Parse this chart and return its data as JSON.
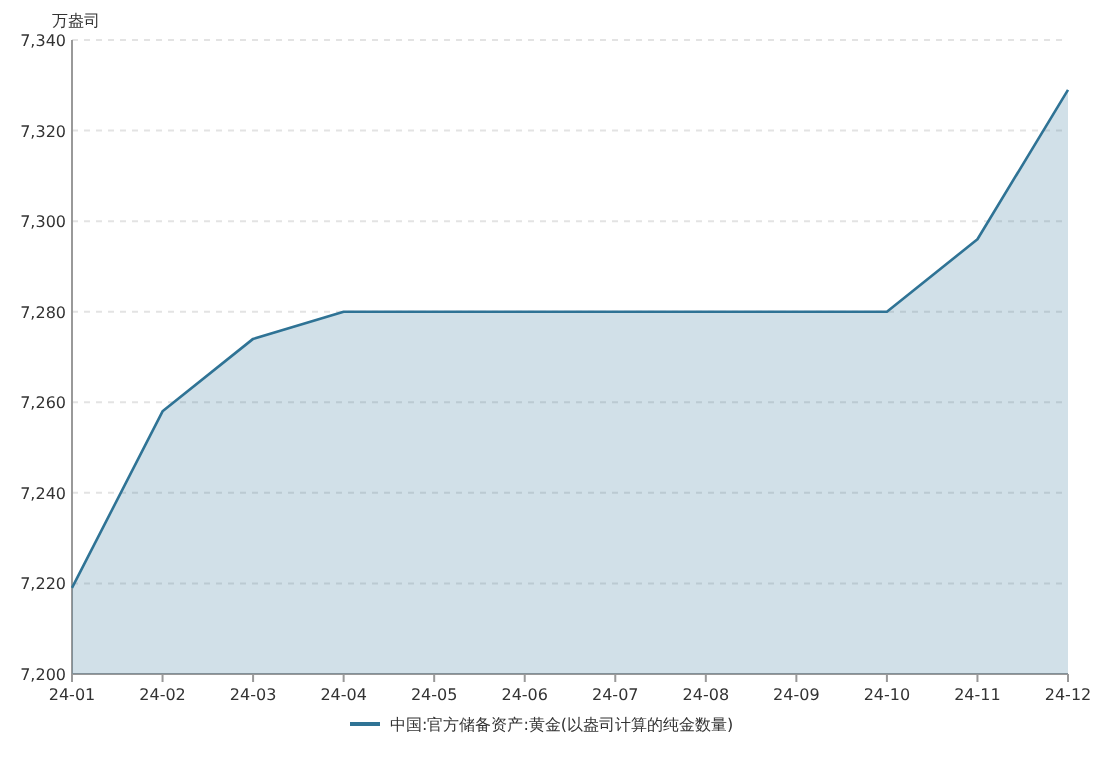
{
  "chart_data": {
    "type": "area",
    "ylabel": "万盎司",
    "categories": [
      "24-01",
      "24-02",
      "24-03",
      "24-04",
      "24-05",
      "24-06",
      "24-07",
      "24-08",
      "24-09",
      "24-10",
      "24-11",
      "24-12"
    ],
    "series": [
      {
        "name": "中国:官方储备资产:黄金(以盎司计算的纯金数量)",
        "color": "#2f7395",
        "values": [
          7219,
          7258,
          7274,
          7280,
          7280,
          7280,
          7280,
          7280,
          7280,
          7280,
          7296,
          7329
        ]
      }
    ],
    "ylim": [
      7200,
      7340
    ],
    "yticks": [
      {
        "value": 7200,
        "label": "7,200"
      },
      {
        "value": 7220,
        "label": "7,220"
      },
      {
        "value": 7240,
        "label": "7,240"
      },
      {
        "value": 7260,
        "label": "7,260"
      },
      {
        "value": 7280,
        "label": "7,280"
      },
      {
        "value": 7300,
        "label": "7,300"
      },
      {
        "value": 7320,
        "label": "7,320"
      },
      {
        "value": 7340,
        "label": "7,340"
      }
    ],
    "grid": "y",
    "legend": "bottom"
  }
}
